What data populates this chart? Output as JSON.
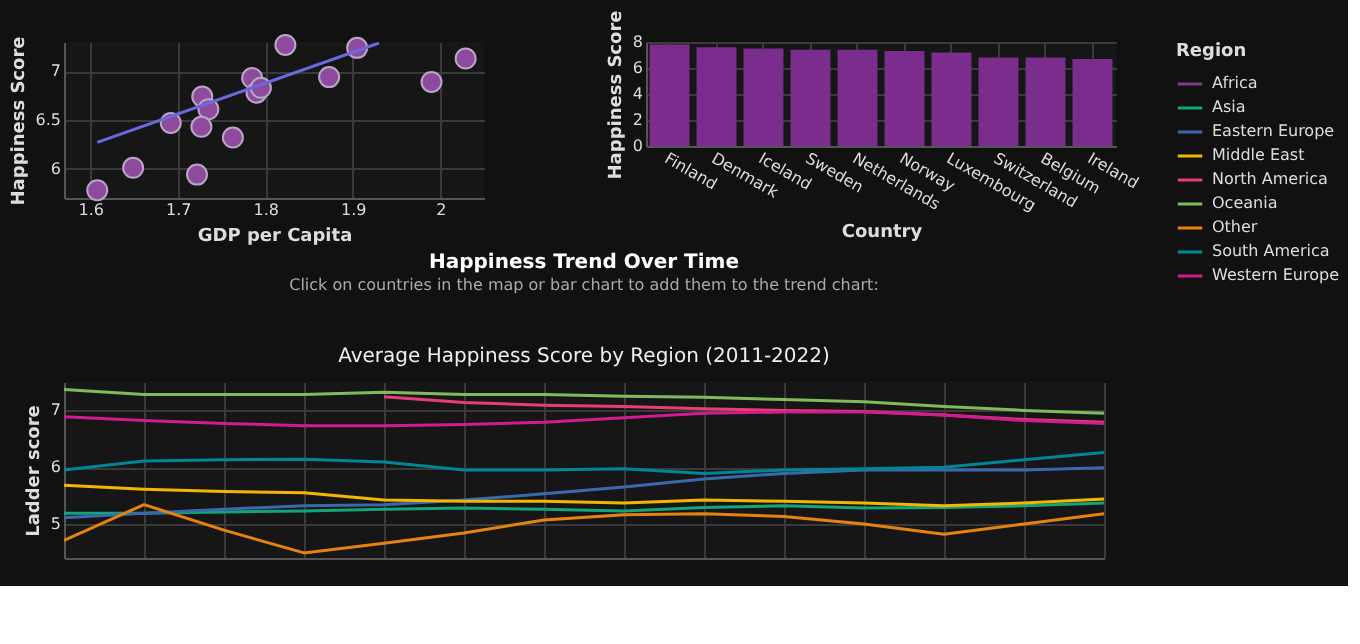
{
  "chart_data": [
    {
      "type": "scatter",
      "xlabel": "GDP per Capita",
      "ylabel": "Happiness Score",
      "xlim": [
        1.57,
        2.05
      ],
      "xticks": [
        1.6,
        1.7,
        1.8,
        1.9,
        2
      ],
      "ylim": [
        5.7,
        7.3
      ],
      "yticks": [
        6,
        6.5,
        7
      ],
      "grid": true,
      "series": [
        {
          "type": "scatter",
          "color": "#8e4b9e",
          "x": [
            1.608,
            1.649,
            1.692,
            1.728,
            1.735,
            1.727,
            1.722,
            1.763,
            1.785,
            1.79,
            1.795,
            1.873,
            1.823,
            1.905,
            1.99,
            2.029
          ],
          "values": [
            5.78,
            6.01,
            6.47,
            6.74,
            6.61,
            6.43,
            5.94,
            6.32,
            6.93,
            6.78,
            6.83,
            6.94,
            7.27,
            7.24,
            6.89,
            7.13
          ]
        },
        {
          "type": "line",
          "color": "#6a67e0",
          "x": [
            1.608,
            1.93
          ],
          "values": [
            6.27,
            7.29
          ]
        }
      ]
    },
    {
      "type": "bar",
      "xlabel": "Country",
      "ylabel": "Happiness Score",
      "categories": [
        "Finland",
        "Denmark",
        "Iceland",
        "Sweden",
        "Netherlands",
        "Norway",
        "Luxembourg",
        "Switzerland",
        "Belgium",
        "Ireland"
      ],
      "ylim": [
        0,
        8
      ],
      "yticks": [
        0,
        2,
        4,
        6,
        8
      ],
      "grid": true,
      "series": [
        {
          "color": "#7b2d8e",
          "values": [
            7.8,
            7.6,
            7.5,
            7.4,
            7.4,
            7.3,
            7.2,
            6.8,
            6.8,
            6.7
          ]
        }
      ]
    },
    {
      "type": "line",
      "title": "Happiness Trend Over Time",
      "subtitle": "Click on countries in the map or bar chart to add them to the trend chart:",
      "annotations": [
        "Average Happiness Score by Region (2011-2022)"
      ],
      "ylabel": "Ladder score",
      "legend_title": "Region",
      "legend": "right",
      "grid": true,
      "ylim": [
        4.4,
        7.5
      ],
      "yticks": [
        5,
        6,
        7
      ],
      "categories": [
        null,
        null,
        null,
        null,
        null,
        null,
        null,
        null,
        null,
        null,
        null,
        null,
        null,
        null
      ],
      "series": [
        {
          "name": "Africa",
          "color": "#7f3c8d",
          "values": [
            null,
            null,
            null,
            null,
            null,
            null,
            null,
            null,
            null,
            null,
            null,
            null,
            null,
            null
          ]
        },
        {
          "name": "Asia",
          "color": "#11a579",
          "values": [
            5.19,
            5.19,
            5.21,
            5.23,
            5.26,
            5.28,
            5.26,
            5.23,
            5.29,
            5.32,
            5.28,
            5.29,
            5.32,
            5.37
          ]
        },
        {
          "name": "Eastern Europe",
          "color": "#3969ac",
          "values": [
            5.11,
            5.19,
            5.26,
            5.32,
            5.34,
            5.42,
            5.53,
            5.65,
            5.79,
            5.89,
            5.95,
            5.95,
            5.95,
            5.99
          ]
        },
        {
          "name": "Middle East",
          "color": "#f2b701",
          "values": [
            5.68,
            5.61,
            5.57,
            5.55,
            5.42,
            5.4,
            5.4,
            5.37,
            5.42,
            5.4,
            5.37,
            5.32,
            5.37,
            5.44
          ]
        },
        {
          "name": "North America",
          "color": "#e73f74",
          "values": [
            null,
            null,
            null,
            null,
            7.24,
            7.14,
            7.09,
            7.07,
            7.03,
            7.0,
            6.98,
            6.92,
            6.84,
            6.79
          ]
        },
        {
          "name": "Oceania",
          "color": "#80ba5a",
          "values": [
            7.37,
            7.28,
            7.28,
            7.28,
            7.32,
            7.28,
            7.28,
            7.25,
            7.23,
            7.19,
            7.15,
            7.07,
            7.0,
            6.95
          ]
        },
        {
          "name": "Other",
          "color": "#e68310",
          "values": [
            4.71,
            5.34,
            4.89,
            4.49,
            4.66,
            4.84,
            5.07,
            5.16,
            5.18,
            5.13,
            5.0,
            4.82,
            5.0,
            5.18
          ]
        },
        {
          "name": "South America",
          "color": "#008695",
          "values": [
            5.95,
            6.11,
            6.13,
            6.14,
            6.09,
            5.95,
            5.95,
            5.97,
            5.89,
            5.95,
            5.97,
            6.0,
            6.13,
            6.26
          ]
        },
        {
          "name": "Western Europe",
          "color": "#cf1c90",
          "values": [
            6.89,
            6.82,
            6.77,
            6.73,
            6.73,
            6.75,
            6.79,
            6.87,
            6.95,
            6.97,
            6.97,
            6.92,
            6.82,
            6.77
          ]
        }
      ]
    }
  ]
}
